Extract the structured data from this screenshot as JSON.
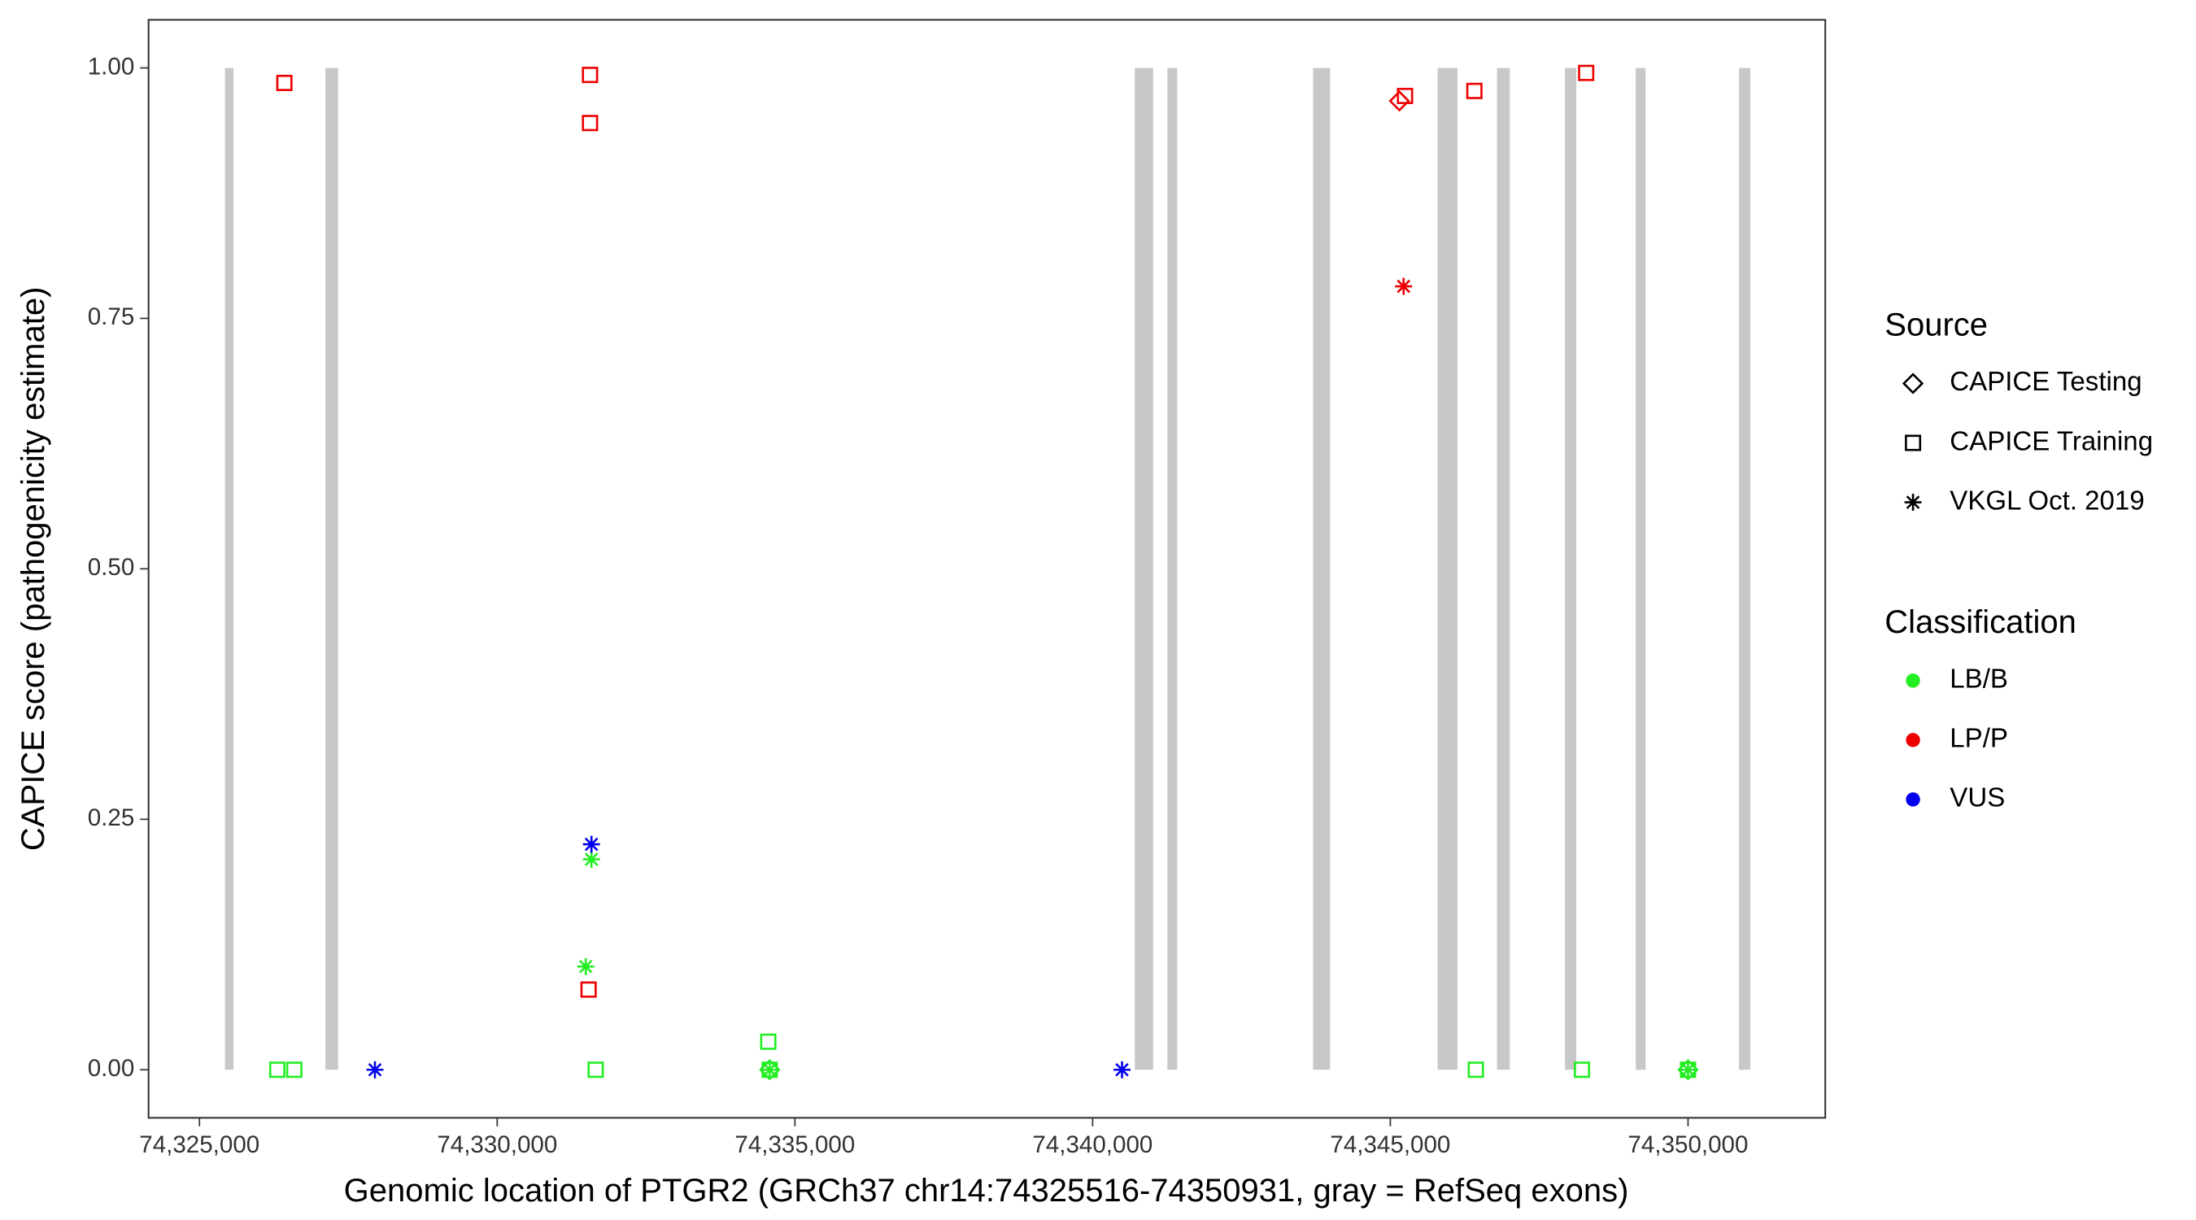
{
  "chart_data": {
    "type": "scatter",
    "x_label": "Genomic location of PTGR2 (GRCh37 chr14:74325516-74350931, gray = RefSeq exons)",
    "y_label": "CAPICE score (pathogenicity estimate)",
    "xlim": [
      74324145,
      74352305
    ],
    "ylim": [
      -0.048,
      1.048
    ],
    "xticks": [
      {
        "value": 74325000,
        "label": "74,325,000"
      },
      {
        "value": 74330000,
        "label": "74,330,000"
      },
      {
        "value": 74335000,
        "label": "74,335,000"
      },
      {
        "value": 74340000,
        "label": "74,340,000"
      },
      {
        "value": 74345000,
        "label": "74,345,000"
      },
      {
        "value": 74350000,
        "label": "74,350,000"
      }
    ],
    "yticks": [
      {
        "value": 0,
        "label": "0.00"
      },
      {
        "value": 0.25,
        "label": "0.25"
      },
      {
        "value": 0.5,
        "label": "0.50"
      },
      {
        "value": 0.75,
        "label": "0.75"
      },
      {
        "value": 1,
        "label": "1.00"
      }
    ],
    "exon_color": "#c8c8c8",
    "exons": [
      [
        74325428,
        74325570
      ],
      [
        74327115,
        74327329
      ],
      [
        74340708,
        74341017
      ],
      [
        74341255,
        74341421
      ],
      [
        74343703,
        74343988
      ],
      [
        74345794,
        74346127
      ],
      [
        74346792,
        74347006
      ],
      [
        74347933,
        74348123
      ],
      [
        74349121,
        74349287
      ],
      [
        74350856,
        74351046
      ]
    ],
    "legend_source_title": "Source",
    "legend_class_title": "Classification",
    "classifications": [
      {
        "name": "LB/B",
        "color": "#22ee22"
      },
      {
        "name": "LP/P",
        "color": "#ee0000"
      },
      {
        "name": "VUS",
        "color": "#0000ee"
      }
    ],
    "series": [
      {
        "name": "CAPICE Testing",
        "shape": "diamond",
        "x": [
          [
            74334577,
            74350000
          ],
          [
            74345152
          ],
          []
        ],
        "y": [
          [
            0,
            0
          ],
          [
            0.967
          ],
          []
        ]
      },
      {
        "name": "CAPICE Training",
        "shape": "square",
        "x": [
          [
            74326307,
            74326592,
            74331654,
            74334553,
            74334577,
            74346436,
            74348218,
            74350000
          ],
          [
            74326426,
            74331559,
            74331559,
            74331535,
            74345247,
            74346412,
            74348289
          ],
          []
        ],
        "y": [
          [
            0,
            0,
            0,
            0.028,
            0,
            0,
            0,
            0
          ],
          [
            0.985,
            0.993,
            0.945,
            0.08,
            0.972,
            0.977,
            0.995
          ],
          []
        ]
      },
      {
        "name": "VKGL Oct. 2019",
        "shape": "asterisk",
        "x": [
          [
            74331583,
            74331488,
            74334577,
            74350000
          ],
          [
            74345223
          ],
          [
            74327947,
            74331583,
            74340494
          ]
        ],
        "y": [
          [
            0.21,
            0.103,
            0,
            0
          ],
          [
            0.782
          ],
          [
            0,
            0.225,
            0
          ]
        ]
      }
    ]
  }
}
